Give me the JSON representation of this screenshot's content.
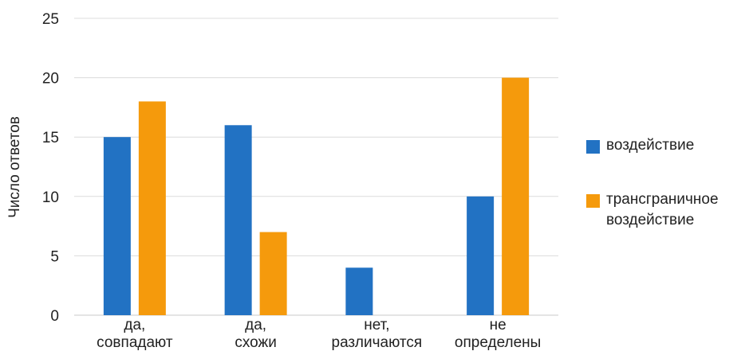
{
  "chart_data": {
    "type": "bar",
    "title": "",
    "xlabel": "",
    "ylabel": "Число ответов",
    "ylim": [
      0,
      25
    ],
    "yticks": [
      0,
      5,
      10,
      15,
      20,
      25
    ],
    "grid": true,
    "legend_position": "right",
    "categories": [
      [
        "да,",
        "совпадают"
      ],
      [
        "да,",
        "схожи"
      ],
      [
        "нет,",
        "различаются"
      ],
      [
        "не",
        "определены"
      ]
    ],
    "series": [
      {
        "name": "воздействие",
        "color": "#2272C3",
        "values": [
          15,
          16,
          4,
          10
        ]
      },
      {
        "name": "трансграничное воздействие",
        "color": "#F59A0C",
        "values": [
          18,
          7,
          0,
          20
        ]
      }
    ]
  },
  "legend": {
    "items": [
      {
        "label": "воздействие",
        "color": "#2272C3"
      },
      {
        "label": "трансграничное воздействие",
        "color": "#F59A0C"
      }
    ]
  }
}
